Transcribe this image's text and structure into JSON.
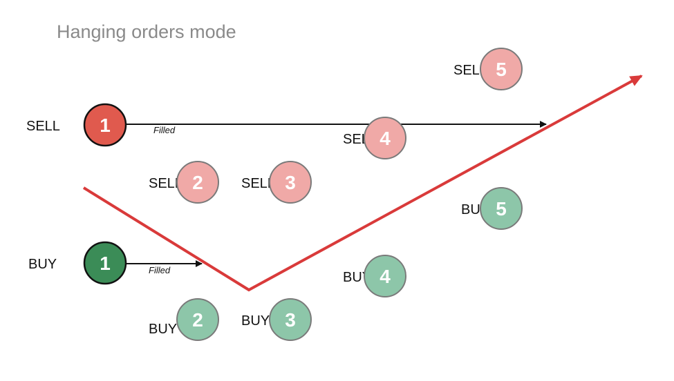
{
  "title": "Hanging orders mode",
  "colors": {
    "sell_active": "#e05a4e",
    "sell_pending": "#f0a9a7",
    "buy_active": "#3b8c57",
    "buy_pending": "#8dc6a9",
    "price_line": "#d93a3a"
  },
  "filled_label": "Filled",
  "sell_orders": [
    {
      "label": "SELL",
      "number": "1",
      "state": "filled"
    },
    {
      "label": "SELL",
      "number": "2",
      "state": "pending"
    },
    {
      "label": "SELL",
      "number": "3",
      "state": "pending"
    },
    {
      "label": "SELL",
      "number": "4",
      "state": "pending"
    },
    {
      "label": "SELL",
      "number": "5",
      "state": "pending"
    }
  ],
  "buy_orders": [
    {
      "label": "BUY",
      "number": "1",
      "state": "filled"
    },
    {
      "label": "BUY",
      "number": "2",
      "state": "pending"
    },
    {
      "label": "BUY",
      "number": "3",
      "state": "pending"
    },
    {
      "label": "BUY",
      "number": "4",
      "state": "pending"
    },
    {
      "label": "BUY",
      "number": "5",
      "state": "pending"
    }
  ]
}
